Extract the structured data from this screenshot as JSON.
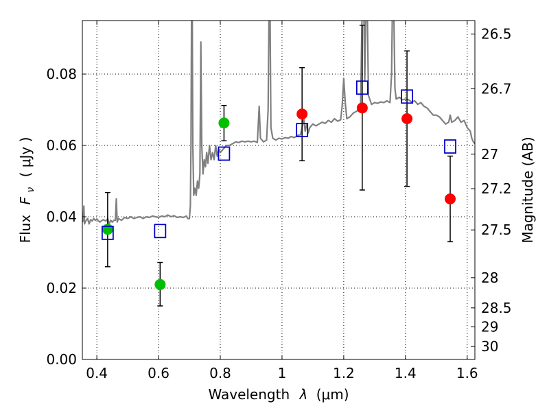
{
  "chart_data": {
    "type": "scatter",
    "xlabel_text": "Wavelength",
    "xlabel_symbol": "λ",
    "xlabel_unit": "(μm)",
    "ylabel_text": "Flux",
    "ylabel_symbol": "F",
    "ylabel_subscript": "ν",
    "ylabel_unit": "( μJy )",
    "y2label": "Magnitude (AB)",
    "xlim": [
      0.353,
      1.625
    ],
    "ylim": [
      0.0,
      0.095
    ],
    "grid": true,
    "x_ticks": [
      {
        "value": 0.4,
        "label": "0.4"
      },
      {
        "value": 0.6,
        "label": "0.6"
      },
      {
        "value": 0.8,
        "label": "0.8"
      },
      {
        "value": 1.0,
        "label": "1"
      },
      {
        "value": 1.2,
        "label": "1.2"
      },
      {
        "value": 1.4,
        "label": "1.4"
      },
      {
        "value": 1.6,
        "label": "1.6"
      }
    ],
    "y_ticks": [
      {
        "value": 0.0,
        "label": "0.00"
      },
      {
        "value": 0.02,
        "label": "0.02"
      },
      {
        "value": 0.04,
        "label": "0.04"
      },
      {
        "value": 0.06,
        "label": "0.06"
      },
      {
        "value": 0.08,
        "label": "0.08"
      }
    ],
    "y2_ticks": [
      {
        "value": 26.5,
        "label": "26.5"
      },
      {
        "value": 26.7,
        "label": "26.7"
      },
      {
        "value": 27.0,
        "label": "27"
      },
      {
        "value": 27.2,
        "label": "27.2"
      },
      {
        "value": 27.5,
        "label": "27.5"
      },
      {
        "value": 28.0,
        "label": "28"
      },
      {
        "value": 28.5,
        "label": "28.5"
      },
      {
        "value": 29.0,
        "label": "29"
      },
      {
        "value": 30.0,
        "label": "30"
      }
    ],
    "spectrum": {
      "color": "#808080",
      "points": [
        [
          0.353,
          0.0385
        ],
        [
          0.356,
          0.039
        ],
        [
          0.358,
          0.043
        ],
        [
          0.36,
          0.038
        ],
        [
          0.365,
          0.039
        ],
        [
          0.37,
          0.0395
        ],
        [
          0.375,
          0.038
        ],
        [
          0.38,
          0.0392
        ],
        [
          0.385,
          0.0388
        ],
        [
          0.39,
          0.0395
        ],
        [
          0.395,
          0.039
        ],
        [
          0.4,
          0.0393
        ],
        [
          0.41,
          0.0385
        ],
        [
          0.42,
          0.0392
        ],
        [
          0.43,
          0.0388
        ],
        [
          0.435,
          0.0395
        ],
        [
          0.44,
          0.038
        ],
        [
          0.445,
          0.039
        ],
        [
          0.45,
          0.0385
        ],
        [
          0.455,
          0.039
        ],
        [
          0.46,
          0.039
        ],
        [
          0.463,
          0.045
        ],
        [
          0.466,
          0.0385
        ],
        [
          0.47,
          0.0395
        ],
        [
          0.48,
          0.039
        ],
        [
          0.49,
          0.0398
        ],
        [
          0.5,
          0.0395
        ],
        [
          0.51,
          0.04
        ],
        [
          0.52,
          0.0395
        ],
        [
          0.53,
          0.0398
        ],
        [
          0.54,
          0.04
        ],
        [
          0.55,
          0.0395
        ],
        [
          0.56,
          0.04
        ],
        [
          0.57,
          0.0398
        ],
        [
          0.58,
          0.0402
        ],
        [
          0.59,
          0.04
        ],
        [
          0.6,
          0.0398
        ],
        [
          0.61,
          0.0402
        ],
        [
          0.62,
          0.04
        ],
        [
          0.63,
          0.0405
        ],
        [
          0.64,
          0.04
        ],
        [
          0.65,
          0.0403
        ],
        [
          0.66,
          0.0398
        ],
        [
          0.67,
          0.04
        ],
        [
          0.68,
          0.0398
        ],
        [
          0.69,
          0.0402
        ],
        [
          0.695,
          0.0395
        ],
        [
          0.7,
          0.0395
        ],
        [
          0.703,
          0.043
        ],
        [
          0.705,
          0.06
        ],
        [
          0.707,
          0.1
        ],
        [
          0.709,
          0.1
        ],
        [
          0.711,
          0.06
        ],
        [
          0.714,
          0.046
        ],
        [
          0.718,
          0.048
        ],
        [
          0.722,
          0.046
        ],
        [
          0.726,
          0.05
        ],
        [
          0.73,
          0.048
        ],
        [
          0.734,
          0.052
        ],
        [
          0.737,
          0.089
        ],
        [
          0.74,
          0.06
        ],
        [
          0.744,
          0.052
        ],
        [
          0.748,
          0.056
        ],
        [
          0.752,
          0.054
        ],
        [
          0.756,
          0.058
        ],
        [
          0.76,
          0.055
        ],
        [
          0.765,
          0.06
        ],
        [
          0.77,
          0.056
        ],
        [
          0.775,
          0.058
        ],
        [
          0.78,
          0.056
        ],
        [
          0.785,
          0.06
        ],
        [
          0.79,
          0.057
        ],
        [
          0.795,
          0.059
        ],
        [
          0.8,
          0.058
        ],
        [
          0.81,
          0.059
        ],
        [
          0.82,
          0.06
        ],
        [
          0.83,
          0.06
        ],
        [
          0.84,
          0.0605
        ],
        [
          0.85,
          0.061
        ],
        [
          0.86,
          0.0608
        ],
        [
          0.87,
          0.0612
        ],
        [
          0.88,
          0.061
        ],
        [
          0.89,
          0.0612
        ],
        [
          0.9,
          0.061
        ],
        [
          0.91,
          0.0612
        ],
        [
          0.92,
          0.0608
        ],
        [
          0.926,
          0.071
        ],
        [
          0.93,
          0.062
        ],
        [
          0.94,
          0.061
        ],
        [
          0.95,
          0.0615
        ],
        [
          0.955,
          0.07
        ],
        [
          0.958,
          0.1
        ],
        [
          0.961,
          0.1
        ],
        [
          0.964,
          0.065
        ],
        [
          0.97,
          0.062
        ],
        [
          0.98,
          0.0615
        ],
        [
          0.99,
          0.062
        ],
        [
          1.0,
          0.0618
        ],
        [
          1.01,
          0.0622
        ],
        [
          1.02,
          0.062
        ],
        [
          1.03,
          0.0625
        ],
        [
          1.04,
          0.0622
        ],
        [
          1.05,
          0.0628
        ],
        [
          1.06,
          0.063
        ],
        [
          1.065,
          0.065
        ],
        [
          1.07,
          0.068
        ],
        [
          1.075,
          0.064
        ],
        [
          1.08,
          0.066
        ],
        [
          1.085,
          0.0635
        ],
        [
          1.09,
          0.065
        ],
        [
          1.1,
          0.066
        ],
        [
          1.11,
          0.0655
        ],
        [
          1.12,
          0.066
        ],
        [
          1.13,
          0.0665
        ],
        [
          1.14,
          0.0662
        ],
        [
          1.15,
          0.067
        ],
        [
          1.16,
          0.0665
        ],
        [
          1.17,
          0.0675
        ],
        [
          1.18,
          0.0668
        ],
        [
          1.19,
          0.0672
        ],
        [
          1.195,
          0.071
        ],
        [
          1.2,
          0.0788
        ],
        [
          1.205,
          0.072
        ],
        [
          1.21,
          0.0675
        ],
        [
          1.22,
          0.068
        ],
        [
          1.23,
          0.069
        ],
        [
          1.24,
          0.0695
        ],
        [
          1.25,
          0.07
        ],
        [
          1.255,
          0.072
        ],
        [
          1.258,
          0.09
        ],
        [
          1.26,
          0.1
        ],
        [
          1.265,
          0.1
        ],
        [
          1.268,
          0.078
        ],
        [
          1.272,
          0.1
        ],
        [
          1.276,
          0.1
        ],
        [
          1.28,
          0.074
        ],
        [
          1.29,
          0.0715
        ],
        [
          1.3,
          0.072
        ],
        [
          1.31,
          0.0718
        ],
        [
          1.32,
          0.0722
        ],
        [
          1.33,
          0.072
        ],
        [
          1.34,
          0.0725
        ],
        [
          1.35,
          0.072
        ],
        [
          1.355,
          0.08
        ],
        [
          1.358,
          0.1
        ],
        [
          1.362,
          0.1
        ],
        [
          1.366,
          0.076
        ],
        [
          1.37,
          0.073
        ],
        [
          1.38,
          0.0735
        ],
        [
          1.39,
          0.0728
        ],
        [
          1.4,
          0.073
        ],
        [
          1.41,
          0.0728
        ],
        [
          1.42,
          0.0722
        ],
        [
          1.43,
          0.0725
        ],
        [
          1.44,
          0.0715
        ],
        [
          1.45,
          0.072
        ],
        [
          1.46,
          0.071
        ],
        [
          1.47,
          0.0705
        ],
        [
          1.48,
          0.0695
        ],
        [
          1.49,
          0.0685
        ],
        [
          1.5,
          0.0685
        ],
        [
          1.51,
          0.068
        ],
        [
          1.52,
          0.067
        ],
        [
          1.53,
          0.066
        ],
        [
          1.54,
          0.0665
        ],
        [
          1.545,
          0.0685
        ],
        [
          1.55,
          0.0665
        ],
        [
          1.56,
          0.067
        ],
        [
          1.57,
          0.068
        ],
        [
          1.58,
          0.0665
        ],
        [
          1.59,
          0.067
        ],
        [
          1.6,
          0.065
        ],
        [
          1.61,
          0.064
        ],
        [
          1.615,
          0.062
        ],
        [
          1.62,
          0.061
        ],
        [
          1.625,
          0.0605
        ]
      ]
    },
    "series": [
      {
        "marker": "circle",
        "color": "#00bf00",
        "points": [
          {
            "x": 0.435,
            "y": 0.0365,
            "ylo": 0.026,
            "yhi": 0.0468
          },
          {
            "x": 0.605,
            "y": 0.021,
            "ylo": 0.015,
            "yhi": 0.0272
          },
          {
            "x": 0.812,
            "y": 0.0663,
            "ylo": 0.0613,
            "yhi": 0.0712
          }
        ]
      },
      {
        "marker": "circle",
        "color": "#ff0000",
        "points": [
          {
            "x": 1.065,
            "y": 0.0688,
            "ylo": 0.0557,
            "yhi": 0.0818
          },
          {
            "x": 1.26,
            "y": 0.0705,
            "ylo": 0.0475,
            "yhi": 0.0937
          },
          {
            "x": 1.405,
            "y": 0.0675,
            "ylo": 0.0485,
            "yhi": 0.0865
          },
          {
            "x": 1.545,
            "y": 0.045,
            "ylo": 0.033,
            "yhi": 0.057
          }
        ]
      },
      {
        "marker": "square-open",
        "color": "#0000cc",
        "points": [
          {
            "x": 0.435,
            "y": 0.0355
          },
          {
            "x": 0.605,
            "y": 0.036
          },
          {
            "x": 0.812,
            "y": 0.0577
          },
          {
            "x": 1.065,
            "y": 0.0643
          },
          {
            "x": 1.26,
            "y": 0.0762
          },
          {
            "x": 1.405,
            "y": 0.0737
          },
          {
            "x": 1.545,
            "y": 0.0597
          }
        ]
      }
    ]
  }
}
